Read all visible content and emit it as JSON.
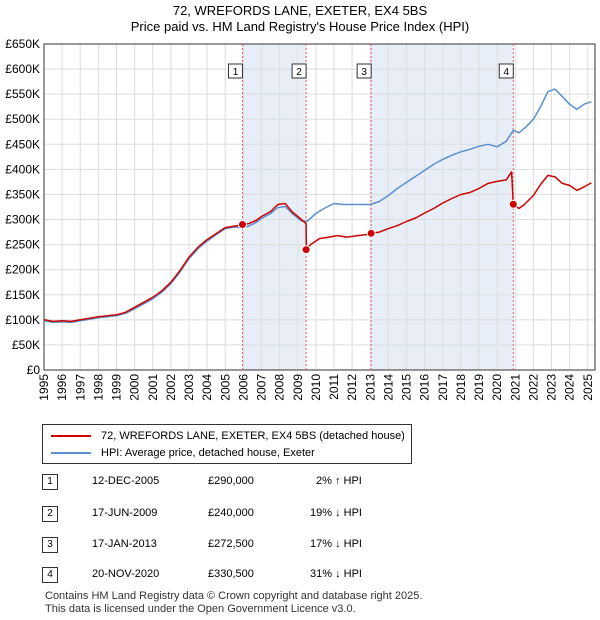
{
  "title": "72, WREFORDS LANE, EXETER, EX4 5BS",
  "subtitle": "Price paid vs. HM Land Registry's House Price Index (HPI)",
  "colors": {
    "property": "#cc0000",
    "hpi": "#5b8fd0",
    "shade": "#e8eef8",
    "grid": "#dddddd",
    "marker": "#e06060"
  },
  "chart_data": {
    "type": "line",
    "title": "72, WREFORDS LANE, EXETER, EX4 5BS",
    "subtitle": "Price paid vs. HM Land Registry's House Price Index (HPI)",
    "xlabel": "",
    "ylabel": "",
    "xlim": [
      1995,
      2025.4
    ],
    "ylim": [
      0,
      650000
    ],
    "x_ticks": [
      1995,
      1996,
      1997,
      1998,
      1999,
      2000,
      2001,
      2002,
      2003,
      2004,
      2005,
      2006,
      2007,
      2008,
      2009,
      2010,
      2011,
      2012,
      2013,
      2014,
      2015,
      2016,
      2017,
      2018,
      2019,
      2020,
      2021,
      2022,
      2023,
      2024,
      2025
    ],
    "y_ticks": [
      {
        "value": 0,
        "label": "£0"
      },
      {
        "value": 50000,
        "label": "£50K"
      },
      {
        "value": 100000,
        "label": "£100K"
      },
      {
        "value": 150000,
        "label": "£150K"
      },
      {
        "value": 200000,
        "label": "£200K"
      },
      {
        "value": 250000,
        "label": "£250K"
      },
      {
        "value": 300000,
        "label": "£300K"
      },
      {
        "value": 350000,
        "label": "£350K"
      },
      {
        "value": 400000,
        "label": "£400K"
      },
      {
        "value": 450000,
        "label": "£450K"
      },
      {
        "value": 500000,
        "label": "£500K"
      },
      {
        "value": 550000,
        "label": "£550K"
      },
      {
        "value": 600000,
        "label": "£600K"
      },
      {
        "value": 650000,
        "label": "£650K"
      }
    ],
    "grid": true,
    "series": [
      {
        "name": "72, WREFORDS LANE, EXETER, EX4 5BS (detached house)",
        "color": "#cc0000",
        "points": [
          [
            1995,
            100000
          ],
          [
            1995.5,
            97000
          ],
          [
            1996,
            98000
          ],
          [
            1996.5,
            97000
          ],
          [
            1997,
            100000
          ],
          [
            1997.5,
            103000
          ],
          [
            1998,
            106000
          ],
          [
            1998.5,
            108000
          ],
          [
            1999,
            110000
          ],
          [
            1999.5,
            115000
          ],
          [
            2000,
            125000
          ],
          [
            2000.5,
            135000
          ],
          [
            2001,
            145000
          ],
          [
            2001.5,
            158000
          ],
          [
            2002,
            175000
          ],
          [
            2002.5,
            198000
          ],
          [
            2003,
            225000
          ],
          [
            2003.5,
            245000
          ],
          [
            2004,
            260000
          ],
          [
            2004.5,
            272000
          ],
          [
            2005,
            284000
          ],
          [
            2005.5,
            287000
          ],
          [
            2005.95,
            290000
          ],
          [
            2006.3,
            292000
          ],
          [
            2006.7,
            298000
          ],
          [
            2007,
            306000
          ],
          [
            2007.5,
            316000
          ],
          [
            2007.9,
            330000
          ],
          [
            2008.3,
            332000
          ],
          [
            2008.7,
            315000
          ],
          [
            2009.2,
            300000
          ],
          [
            2009.46,
            292000
          ],
          [
            2009.47,
            240000
          ],
          [
            2009.7,
            250000
          ],
          [
            2010.2,
            262000
          ],
          [
            2010.7,
            265000
          ],
          [
            2011.2,
            268000
          ],
          [
            2011.7,
            265000
          ],
          [
            2012.3,
            268000
          ],
          [
            2012.8,
            270000
          ],
          [
            2013.05,
            272500
          ],
          [
            2013.5,
            275000
          ],
          [
            2014,
            282000
          ],
          [
            2014.5,
            288000
          ],
          [
            2015,
            296000
          ],
          [
            2015.5,
            303000
          ],
          [
            2016,
            313000
          ],
          [
            2016.5,
            322000
          ],
          [
            2017,
            333000
          ],
          [
            2017.5,
            342000
          ],
          [
            2018,
            350000
          ],
          [
            2018.5,
            354000
          ],
          [
            2019,
            362000
          ],
          [
            2019.5,
            372000
          ],
          [
            2020,
            376000
          ],
          [
            2020.5,
            379000
          ],
          [
            2020.8,
            395000
          ],
          [
            2020.87,
            345000
          ],
          [
            2020.89,
            330500
          ],
          [
            2021.2,
            322000
          ],
          [
            2021.5,
            330000
          ],
          [
            2022,
            348000
          ],
          [
            2022.4,
            370000
          ],
          [
            2022.8,
            388000
          ],
          [
            2023.2,
            385000
          ],
          [
            2023.6,
            372000
          ],
          [
            2024,
            368000
          ],
          [
            2024.4,
            358000
          ],
          [
            2024.8,
            365000
          ],
          [
            2025.2,
            373000
          ]
        ]
      },
      {
        "name": "HPI: Average price, detached house, Exeter",
        "color": "#5b8fd0",
        "points": [
          [
            1995,
            98000
          ],
          [
            1995.5,
            95000
          ],
          [
            1996,
            96000
          ],
          [
            1996.5,
            95000
          ],
          [
            1997,
            98000
          ],
          [
            1997.5,
            101000
          ],
          [
            1998,
            104000
          ],
          [
            1998.5,
            106000
          ],
          [
            1999,
            108000
          ],
          [
            1999.5,
            113000
          ],
          [
            2000,
            122000
          ],
          [
            2000.5,
            132000
          ],
          [
            2001,
            142000
          ],
          [
            2001.5,
            155000
          ],
          [
            2002,
            172000
          ],
          [
            2002.5,
            195000
          ],
          [
            2003,
            222000
          ],
          [
            2003.5,
            242000
          ],
          [
            2004,
            257000
          ],
          [
            2004.5,
            270000
          ],
          [
            2005,
            282000
          ],
          [
            2005.5,
            285000
          ],
          [
            2005.95,
            284000
          ],
          [
            2006.3,
            287000
          ],
          [
            2006.7,
            294000
          ],
          [
            2007,
            302000
          ],
          [
            2007.5,
            312000
          ],
          [
            2007.9,
            324000
          ],
          [
            2008.3,
            326000
          ],
          [
            2008.7,
            312000
          ],
          [
            2009.2,
            297000
          ],
          [
            2009.5,
            296000
          ],
          [
            2010,
            312000
          ],
          [
            2010.5,
            323000
          ],
          [
            2011,
            332000
          ],
          [
            2011.5,
            330000
          ],
          [
            2012,
            330000
          ],
          [
            2012.5,
            330000
          ],
          [
            2013,
            330000
          ],
          [
            2013.5,
            336000
          ],
          [
            2014,
            348000
          ],
          [
            2014.5,
            362000
          ],
          [
            2015,
            374000
          ],
          [
            2015.5,
            386000
          ],
          [
            2016,
            398000
          ],
          [
            2016.5,
            410000
          ],
          [
            2017,
            420000
          ],
          [
            2017.5,
            428000
          ],
          [
            2018,
            435000
          ],
          [
            2018.5,
            440000
          ],
          [
            2019,
            446000
          ],
          [
            2019.5,
            450000
          ],
          [
            2020,
            445000
          ],
          [
            2020.5,
            456000
          ],
          [
            2020.89,
            478000
          ],
          [
            2021.2,
            473000
          ],
          [
            2021.6,
            485000
          ],
          [
            2022,
            500000
          ],
          [
            2022.4,
            525000
          ],
          [
            2022.8,
            555000
          ],
          [
            2023.2,
            560000
          ],
          [
            2023.6,
            545000
          ],
          [
            2024,
            530000
          ],
          [
            2024.4,
            520000
          ],
          [
            2024.8,
            530000
          ],
          [
            2025.2,
            535000
          ]
        ]
      }
    ],
    "sales": [
      {
        "num": "1",
        "x": 2005.95,
        "value": 290000,
        "date": "12-DEC-2005",
        "price": "£290,000",
        "hpi": "2% ↑ HPI"
      },
      {
        "num": "2",
        "x": 2009.46,
        "value": 240000,
        "date": "17-JUN-2009",
        "price": "£240,000",
        "hpi": "19% ↓ HPI"
      },
      {
        "num": "3",
        "x": 2013.05,
        "value": 272500,
        "date": "17-JAN-2013",
        "price": "£272,500",
        "hpi": "17% ↓ HPI"
      },
      {
        "num": "4",
        "x": 2020.89,
        "value": 330500,
        "date": "20-NOV-2020",
        "price": "£330,500",
        "hpi": "31% ↓ HPI"
      }
    ],
    "shaded_ranges": [
      [
        2005.95,
        2009.46
      ],
      [
        2013.05,
        2020.89
      ]
    ],
    "legend": [
      "72, WREFORDS LANE, EXETER, EX4 5BS (detached house)",
      "HPI: Average price, detached house, Exeter"
    ]
  },
  "footer": {
    "line1": "Contains HM Land Registry data © Crown copyright and database right 2025.",
    "line2": "This data is licensed under the Open Government Licence v3.0."
  }
}
